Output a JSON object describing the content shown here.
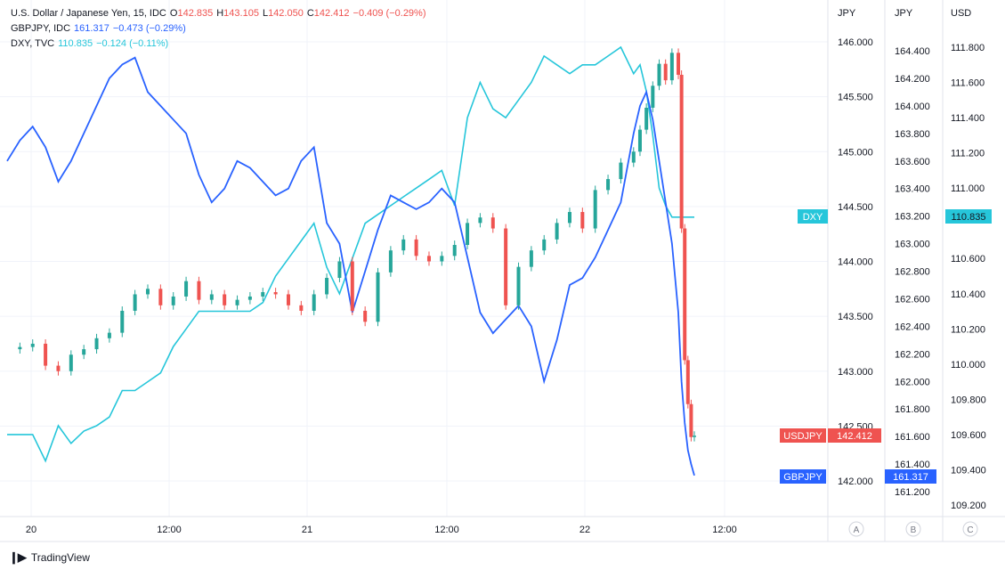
{
  "legend": {
    "row1": {
      "name": "U.S. Dollar / Japanese Yen, 15, IDC",
      "o_label": "O",
      "o": "142.835",
      "h_label": "H",
      "h": "143.105",
      "l_label": "L",
      "l": "142.050",
      "c_label": "C",
      "c": "142.412",
      "chg": "−0.409 (−0.29%)"
    },
    "row2": {
      "name": "GBPJPY, IDC",
      "value": "161.317",
      "chg": "−0.473 (−0.29%)"
    },
    "row3": {
      "name": "DXY, TVC",
      "value": "110.835",
      "chg": "−0.124 (−0.11%)"
    }
  },
  "axes": {
    "a_header": "JPY",
    "b_header": "JPY",
    "c_header": "USD",
    "a_button": "A",
    "b_button": "B",
    "c_button": "C"
  },
  "badges": {
    "dxy_label": "DXY",
    "dxy_value": "110.835",
    "usdjpy_label": "USDJPY",
    "usdjpy_value": "142.412",
    "gbpjpy_label": "GBPJPY",
    "gbpjpy_value": "161.317"
  },
  "colors": {
    "usdjpy_up": "#26a69a",
    "usdjpy_down": "#ef5350",
    "gbpjpy": "#2962ff",
    "dxy": "#26c6da",
    "grid": "#f0f3fa",
    "text": "#131722"
  },
  "footer": {
    "brand": "TradingView"
  },
  "chart_data": {
    "type": "line",
    "title": "U.S. Dollar / Japanese Yen, 15, IDC",
    "x_tick_labels": [
      "20",
      "12:00",
      "21",
      "12:00",
      "22",
      "12:00"
    ],
    "y_axes": [
      {
        "id": "A",
        "unit": "JPY",
        "range": [
          142.0,
          146.0
        ],
        "ticks": [
          "146.000",
          "145.500",
          "145.000",
          "144.500",
          "144.000",
          "143.500",
          "143.000",
          "142.500",
          "142.000"
        ]
      },
      {
        "id": "B",
        "unit": "JPY",
        "range": [
          161.2,
          164.4
        ],
        "ticks": [
          "164.400",
          "164.200",
          "164.000",
          "163.800",
          "163.600",
          "163.400",
          "163.200",
          "163.000",
          "162.800",
          "162.600",
          "162.400",
          "162.200",
          "162.000",
          "161.800",
          "161.600",
          "161.400",
          "161.200"
        ]
      },
      {
        "id": "C",
        "unit": "USD",
        "range": [
          109.2,
          111.8
        ],
        "ticks": [
          "111.800",
          "111.600",
          "111.400",
          "111.200",
          "111.000",
          "110.835",
          "110.600",
          "110.400",
          "110.200",
          "110.000",
          "109.800",
          "109.600",
          "109.400",
          "109.200"
        ]
      }
    ],
    "x": [
      0,
      4,
      8,
      12,
      16,
      20,
      24,
      28,
      32,
      36,
      40,
      44,
      48,
      52,
      56,
      60,
      64,
      68,
      72,
      76,
      80,
      84,
      88,
      92,
      96,
      100,
      104,
      108,
      112,
      116,
      120,
      124,
      128,
      132,
      136,
      140,
      144,
      148,
      152,
      156,
      160,
      164,
      168,
      172,
      176,
      180,
      184,
      188,
      192,
      196,
      198,
      200,
      202,
      204,
      206,
      208,
      210,
      211,
      212,
      213,
      214,
      215
    ],
    "series": [
      {
        "name": "U.S. Dollar / Japanese Yen, 15, IDC",
        "axis": "A",
        "style": "candles",
        "values": [
          143.2,
          143.22,
          143.25,
          143.05,
          143.0,
          143.15,
          143.2,
          143.3,
          143.35,
          143.55,
          143.7,
          143.75,
          143.6,
          143.68,
          143.82,
          143.65,
          143.7,
          143.6,
          143.65,
          143.68,
          143.72,
          143.7,
          143.6,
          143.55,
          143.7,
          143.85,
          144.0,
          143.55,
          143.45,
          143.9,
          144.1,
          144.2,
          144.05,
          144.0,
          144.05,
          144.15,
          144.35,
          144.4,
          144.3,
          143.6,
          143.95,
          144.1,
          144.2,
          144.35,
          144.45,
          144.3,
          144.65,
          144.75,
          144.9,
          145.0,
          145.2,
          145.4,
          145.6,
          145.8,
          145.65,
          145.9,
          145.7,
          144.3,
          143.1,
          142.7,
          142.4,
          142.412
        ]
      },
      {
        "name": "GBPJPY, IDC",
        "axis": "B",
        "style": "line",
        "values": [
          163.6,
          163.75,
          163.85,
          163.7,
          163.45,
          163.6,
          163.8,
          164.0,
          164.2,
          164.3,
          164.35,
          164.1,
          164.0,
          163.9,
          163.8,
          163.5,
          163.3,
          163.4,
          163.6,
          163.55,
          163.45,
          163.35,
          163.4,
          163.6,
          163.7,
          163.15,
          163.0,
          162.5,
          162.8,
          163.1,
          163.35,
          163.3,
          163.25,
          163.3,
          163.4,
          163.3,
          162.9,
          162.5,
          162.35,
          162.45,
          162.55,
          162.4,
          162.0,
          162.3,
          162.7,
          162.75,
          162.9,
          163.1,
          163.3,
          163.8,
          164.0,
          164.1,
          163.9,
          163.6,
          163.3,
          163.0,
          162.5,
          162.0,
          161.7,
          161.5,
          161.4,
          161.317
        ]
      },
      {
        "name": "DXY, TVC",
        "axis": "C",
        "style": "line",
        "values": [
          109.6,
          109.6,
          109.6,
          109.45,
          109.65,
          109.55,
          109.62,
          109.65,
          109.7,
          109.85,
          109.85,
          109.9,
          109.95,
          110.1,
          110.2,
          110.3,
          110.3,
          110.3,
          110.3,
          110.3,
          110.35,
          110.5,
          110.6,
          110.7,
          110.8,
          110.55,
          110.4,
          110.6,
          110.8,
          110.85,
          110.9,
          110.95,
          111.0,
          111.05,
          111.1,
          110.9,
          111.4,
          111.6,
          111.45,
          111.4,
          111.5,
          111.6,
          111.75,
          111.7,
          111.65,
          111.7,
          111.7,
          111.75,
          111.8,
          111.65,
          111.7,
          111.55,
          111.3,
          111.0,
          110.9,
          110.835,
          110.835,
          110.835,
          110.835,
          110.835,
          110.835,
          110.835
        ]
      }
    ],
    "grid": true,
    "legend_position": "top-left"
  }
}
